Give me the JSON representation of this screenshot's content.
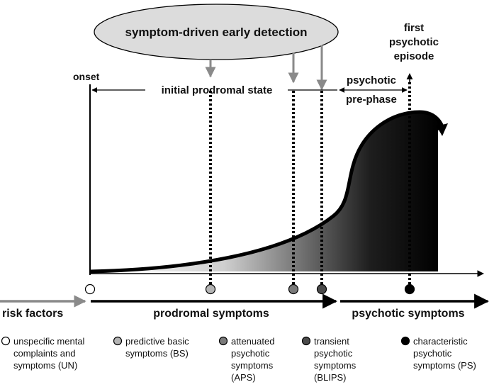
{
  "header": {
    "detection_label": "symptom-driven early detection"
  },
  "timeline": {
    "onset": "onset",
    "initial_prodromal_state": "initial prodromal state",
    "psychotic_prephase_line1": "psychotic",
    "psychotic_prephase_line2": "pre-phase",
    "first_episode_line1": "first",
    "first_episode_line2": "psychotic",
    "first_episode_line3": "episode"
  },
  "phases": {
    "risk_factors": "risk factors",
    "prodromal": "prodromal symptoms",
    "psychotic": "psychotic symptoms"
  },
  "legend": {
    "un": [
      "unspecific mental",
      "complaints and",
      "symptoms (UN)"
    ],
    "bs": [
      "predictive basic",
      "symptoms (BS)"
    ],
    "aps": [
      "attenuated",
      "psychotic",
      "symptoms",
      "(APS)"
    ],
    "blips": [
      "transient",
      "psychotic",
      "symptoms",
      "(BLIPS)"
    ],
    "ps": [
      "characteristic",
      "psychotic",
      "symptoms (PS)"
    ]
  },
  "colors": {
    "un": "#ffffff",
    "bs": "#b4b4b4",
    "aps": "#7a7a7a",
    "blips": "#4a4a4a",
    "ps": "#000000",
    "ellipse": "#dcdcdc",
    "arrow_gray": "#8a8a8a"
  }
}
